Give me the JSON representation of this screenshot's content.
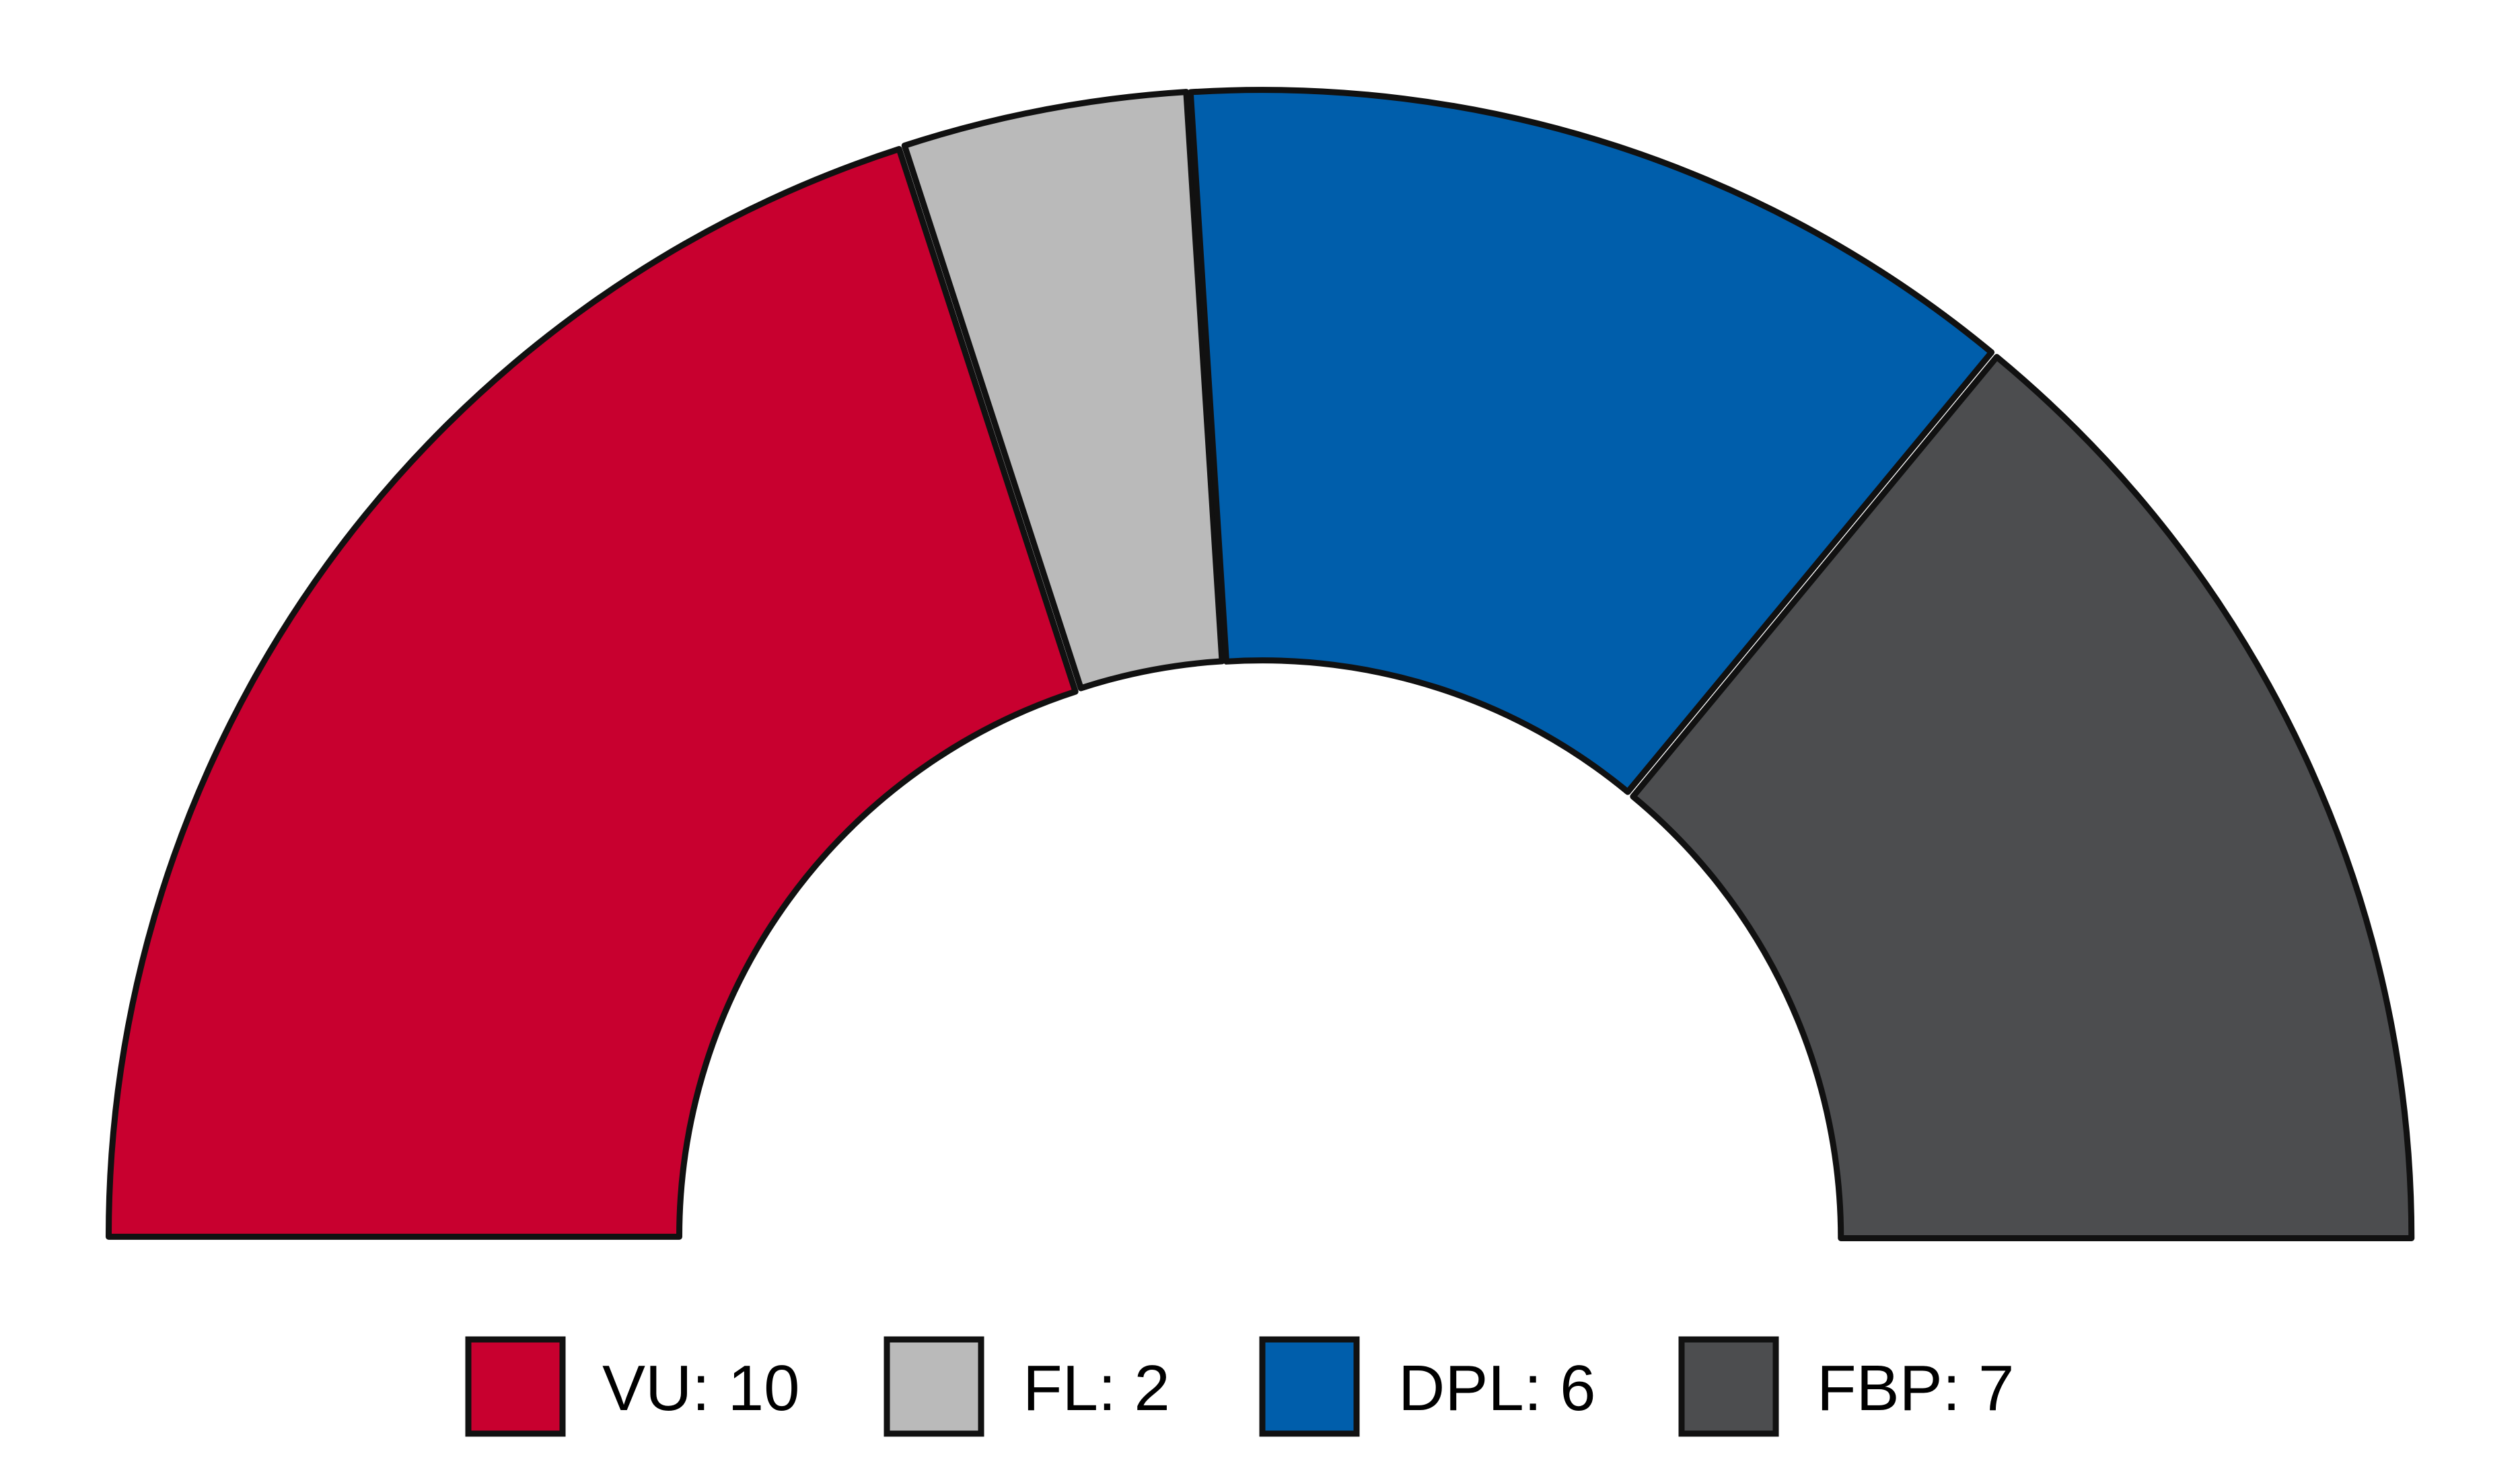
{
  "chart_data": {
    "type": "pie",
    "subtype": "parliament-half-donut",
    "categories": [
      "VU",
      "FL",
      "DPL",
      "FBP"
    ],
    "values": [
      10,
      2,
      6,
      7
    ],
    "total": 25,
    "colors": [
      "#c8002f",
      "#bababa",
      "#005eab",
      "#4c4d4f"
    ],
    "legend_position": "bottom",
    "legend": [
      {
        "label": "VU: 10",
        "color": "#c8002f"
      },
      {
        "label": "FL: 2",
        "color": "#bababa"
      },
      {
        "label": "DPL: 6",
        "color": "#005eab"
      },
      {
        "label": "FBP: 7",
        "color": "#4c4d4f"
      }
    ]
  }
}
